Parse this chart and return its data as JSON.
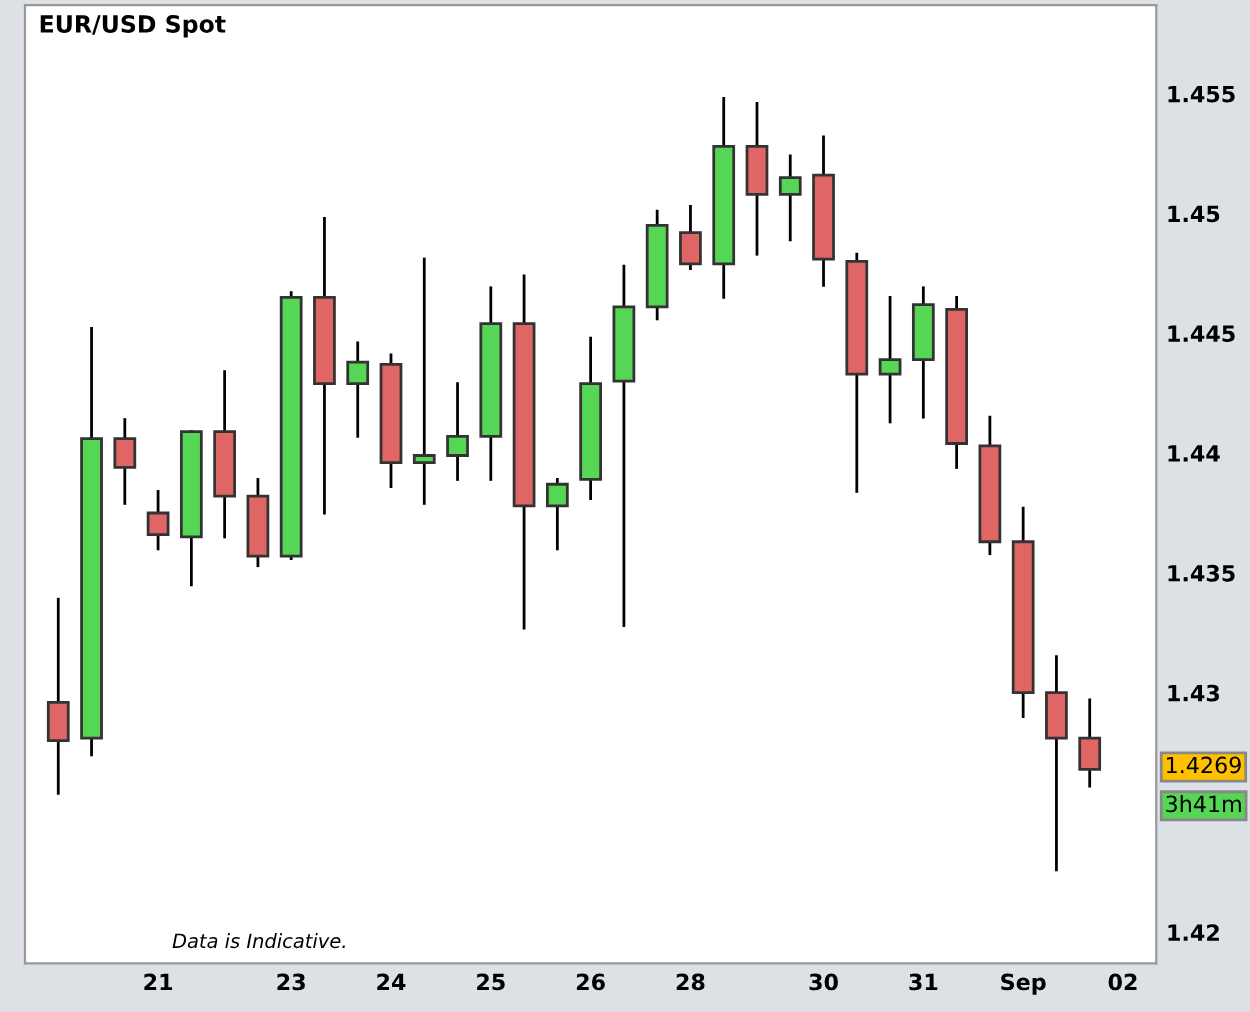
{
  "chart_data": {
    "type": "candlestick",
    "title": "EUR/USD Spot",
    "categories": [
      null,
      null,
      null,
      "21",
      null,
      null,
      null,
      "23",
      null,
      null,
      "24",
      null,
      null,
      "25",
      null,
      null,
      "26",
      null,
      null,
      "28",
      null,
      null,
      null,
      "30",
      null,
      null,
      "31",
      null,
      null,
      "Sep",
      null,
      null,
      "02"
    ],
    "ohlc": [
      [
        1.4296,
        1.4339,
        1.4258,
        1.428
      ],
      [
        1.4281,
        1.4452,
        1.4274,
        1.4406
      ],
      [
        1.4406,
        1.4414,
        1.4379,
        1.4394
      ],
      [
        1.4375,
        1.4384,
        1.436,
        1.4366
      ],
      [
        1.4365,
        1.4409,
        1.4345,
        1.4409
      ],
      [
        1.4409,
        1.4434,
        1.4365,
        1.4382
      ],
      [
        1.4382,
        1.4389,
        1.4353,
        1.4357
      ],
      [
        1.4357,
        1.4467,
        1.4356,
        1.4465
      ],
      [
        1.4465,
        1.4498,
        1.4375,
        1.4429
      ],
      [
        1.4429,
        1.4446,
        1.4407,
        1.4438
      ],
      [
        1.4437,
        1.4441,
        1.4386,
        1.4396
      ],
      [
        1.4396,
        1.4481,
        1.4379,
        1.4399
      ],
      [
        1.4399,
        1.4429,
        1.4389,
        1.4407
      ],
      [
        1.4407,
        1.4469,
        1.4389,
        1.4454
      ],
      [
        1.4454,
        1.4474,
        1.4327,
        1.4378
      ],
      [
        1.4378,
        1.4389,
        1.436,
        1.4387
      ],
      [
        1.4389,
        1.4448,
        1.4381,
        1.4429
      ],
      [
        1.443,
        1.4478,
        1.4328,
        1.4461
      ],
      [
        1.4461,
        1.4501,
        1.4456,
        1.4495
      ],
      [
        1.4492,
        1.4503,
        1.4477,
        1.4479
      ],
      [
        1.4479,
        1.4548,
        1.4465,
        1.4528
      ],
      [
        1.4528,
        1.4546,
        1.4483,
        1.4508
      ],
      [
        1.4508,
        1.4524,
        1.4489,
        1.4515
      ],
      [
        1.4516,
        1.4532,
        1.447,
        1.4481
      ],
      [
        1.448,
        1.4483,
        1.4384,
        1.4433
      ],
      [
        1.4433,
        1.4465,
        1.4413,
        1.4439
      ],
      [
        1.4439,
        1.4469,
        1.4415,
        1.4462
      ],
      [
        1.446,
        1.4465,
        1.4394,
        1.4404
      ],
      [
        1.4403,
        1.4415,
        1.4358,
        1.4363
      ],
      [
        1.4363,
        1.4377,
        1.429,
        1.43
      ],
      [
        1.43,
        1.4315,
        1.4226,
        1.4281
      ],
      [
        1.4281,
        1.4297,
        1.4261,
        1.4268
      ],
      null
    ],
    "colors": [
      "#e06666",
      "#55d655",
      "#e06666",
      "#e06666",
      "#55d655",
      "#e06666",
      "#e06666",
      "#55d655",
      "#e06666",
      "#55d655",
      "#e06666",
      "#55d655",
      "#55d655",
      "#55d655",
      "#e06666",
      "#55d655",
      "#55d655",
      "#55d655",
      "#55d655",
      "#e06666",
      "#55d655",
      "#e06666",
      "#55d655",
      "#e06666",
      "#e06666",
      "#55d655",
      "#55d655",
      "#e06666",
      "#e06666",
      "#e06666",
      "#e06666",
      "#e06666",
      null
    ],
    "ylim": [
      1.4187,
      1.4587
    ],
    "yticks": [
      1.42,
      1.43,
      1.435,
      1.44,
      1.445,
      1.45,
      1.455
    ],
    "grid": false,
    "annotations": [
      {
        "text": "1.4269",
        "y": 1.4269
      },
      "3h41m",
      "Data is Indicative."
    ]
  }
}
